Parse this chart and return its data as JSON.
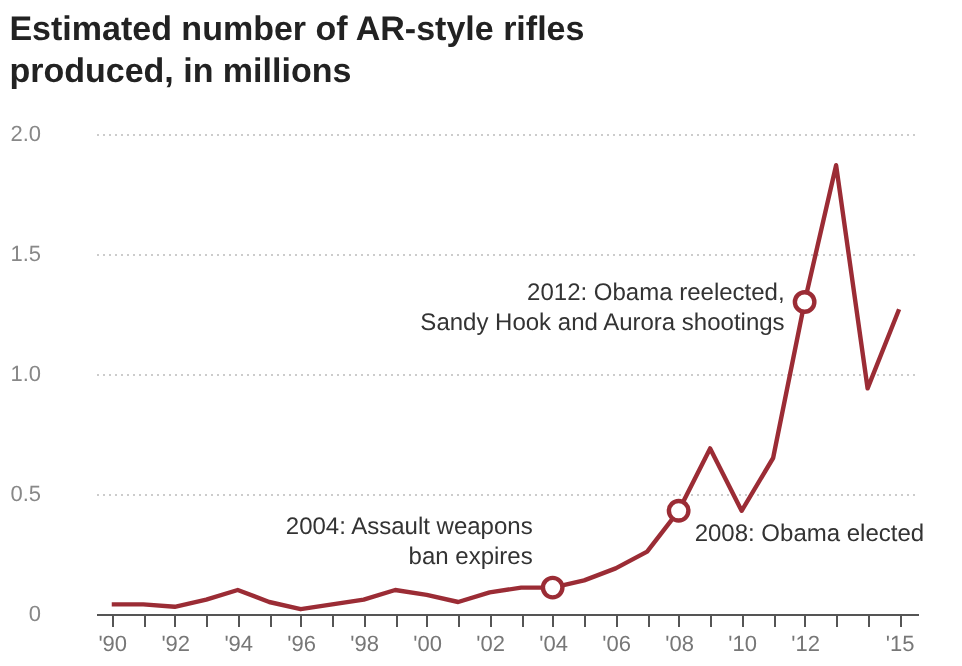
{
  "chart_data": {
    "type": "line",
    "title": "Estimated number of AR-style rifles produced, in millions",
    "x": [
      1990,
      1991,
      1992,
      1993,
      1994,
      1995,
      1996,
      1997,
      1998,
      1999,
      2000,
      2001,
      2002,
      2003,
      2004,
      2005,
      2006,
      2007,
      2008,
      2009,
      2010,
      2011,
      2012,
      2013,
      2014,
      2015
    ],
    "series": [
      {
        "color": "#9b2c35",
        "values": [
          0.04,
          0.04,
          0.03,
          0.06,
          0.1,
          0.05,
          0.02,
          0.04,
          0.06,
          0.1,
          0.08,
          0.05,
          0.09,
          0.11,
          0.11,
          0.14,
          0.19,
          0.26,
          0.43,
          0.69,
          0.43,
          0.65,
          1.3,
          1.87,
          0.94,
          1.27
        ]
      }
    ],
    "xlim": [
      1989.5,
      2015.6
    ],
    "xticks": [
      {
        "value": 1990,
        "label": "'90"
      },
      {
        "value": 1991,
        "label": null
      },
      {
        "value": 1992,
        "label": "'92"
      },
      {
        "value": 1993,
        "label": null
      },
      {
        "value": 1994,
        "label": "'94"
      },
      {
        "value": 1995,
        "label": null
      },
      {
        "value": 1996,
        "label": "'96"
      },
      {
        "value": 1997,
        "label": null
      },
      {
        "value": 1998,
        "label": "'98"
      },
      {
        "value": 1999,
        "label": null
      },
      {
        "value": 2000,
        "label": "'00"
      },
      {
        "value": 2001,
        "label": null
      },
      {
        "value": 2002,
        "label": "'02"
      },
      {
        "value": 2003,
        "label": null
      },
      {
        "value": 2004,
        "label": "'04"
      },
      {
        "value": 2005,
        "label": null
      },
      {
        "value": 2006,
        "label": "'06"
      },
      {
        "value": 2007,
        "label": null
      },
      {
        "value": 2008,
        "label": "'08"
      },
      {
        "value": 2009,
        "label": null
      },
      {
        "value": 2010,
        "label": "'10"
      },
      {
        "value": 2011,
        "label": null
      },
      {
        "value": 2012,
        "label": "'12"
      },
      {
        "value": 2013,
        "label": null
      },
      {
        "value": 2014,
        "label": null
      },
      {
        "value": 2015,
        "label": "'15"
      }
    ],
    "ylim": [
      0,
      2
    ],
    "yticks": [
      {
        "value": 0,
        "label": "0"
      },
      0.5,
      {
        "value": 1,
        "label": "1.0"
      },
      1.5,
      {
        "value": 2,
        "label": "2.0"
      }
    ],
    "grid": "y",
    "marker": "none",
    "line_style": "solid",
    "annotations": [
      {
        "text": "2004: Assault weapons\nban expires",
        "x": 2004,
        "y": 0.11
      },
      {
        "text": "2008: Obama elected",
        "x": 2008,
        "y": 0.43
      },
      {
        "text": "2012: Obama reelected,\nSandy Hook and Aurora shootings",
        "x": 2012,
        "y": 1.3
      }
    ]
  }
}
